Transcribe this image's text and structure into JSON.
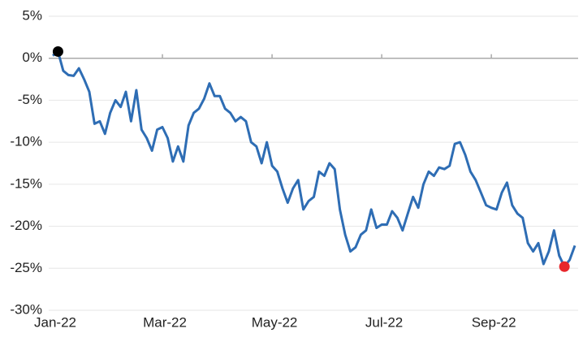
{
  "chart_data": {
    "type": "line",
    "categories": [
      "Jan-22",
      null,
      null,
      null,
      null,
      null,
      null,
      null,
      null,
      null,
      null,
      null,
      null,
      null,
      null,
      null,
      null,
      null,
      null,
      null,
      null,
      "Mar-22",
      null,
      null,
      null,
      null,
      null,
      null,
      null,
      null,
      null,
      null,
      null,
      null,
      null,
      null,
      null,
      null,
      null,
      null,
      null,
      null,
      "May-22",
      null,
      null,
      null,
      null,
      null,
      null,
      null,
      null,
      null,
      null,
      null,
      null,
      null,
      null,
      null,
      null,
      null,
      null,
      null,
      null,
      "Jul-22",
      null,
      null,
      null,
      null,
      null,
      null,
      null,
      null,
      null,
      null,
      null,
      null,
      null,
      null,
      null,
      null,
      null,
      null,
      null,
      null,
      "Sep-22",
      null,
      null,
      null,
      null,
      null,
      null,
      null,
      null,
      null,
      null,
      null,
      null,
      null,
      null,
      null,
      null
    ],
    "series": [
      {
        "color": "#2e6db4",
        "values": [
          0.3,
          0.8,
          -1.5,
          -2,
          -2.1,
          -1.2,
          -2.5,
          -4,
          -7.8,
          -7.5,
          -9,
          -6.5,
          -5,
          -5.8,
          -4,
          -7.5,
          -3.8,
          -8.5,
          -9.5,
          -11,
          -8.5,
          -8.2,
          -9.5,
          -12.3,
          -10.5,
          -12.3,
          -8,
          -6.5,
          -6,
          -4.8,
          -3,
          -4.5,
          -4.5,
          -6,
          -6.5,
          -7.5,
          -7,
          -7.5,
          -10,
          -10.5,
          -12.5,
          -10,
          -12.8,
          -13.5,
          -15.5,
          -17.2,
          -15.5,
          -14.5,
          -18,
          -17,
          -16.5,
          -13.5,
          -14,
          -12.5,
          -13.2,
          -18,
          -21,
          -23,
          -22.5,
          -21,
          -20.5,
          -18,
          -20.2,
          -19.8,
          -19.8,
          -18.2,
          -19,
          -20.5,
          -18.5,
          -16.5,
          -17.8,
          -15,
          -13.5,
          -14,
          -13,
          -13.2,
          -12.8,
          -10.2,
          -10,
          -11.5,
          -13.5,
          -14.5,
          -16,
          -17.5,
          -17.8,
          -18,
          -16,
          -14.8,
          -17.5,
          -18.5,
          -19,
          -22,
          -23,
          -22,
          -24.5,
          -23,
          -20.5,
          -23.5,
          -24.8,
          -24,
          -22.3
        ]
      }
    ],
    "highlight_points": [
      {
        "index": 1,
        "color": "#000000"
      },
      {
        "index": 98,
        "color": "#e8262b"
      }
    ],
    "ylim": [
      -30,
      5
    ],
    "yticks": [
      {
        "value": -30,
        "label": "-30%"
      },
      {
        "value": -25,
        "label": "-25%"
      },
      {
        "value": -20,
        "label": "-20%"
      },
      {
        "value": -15,
        "label": "-15%"
      },
      {
        "value": -10,
        "label": "-10%"
      },
      {
        "value": -5,
        "label": "-5%"
      },
      {
        "value": 0,
        "label": "0%"
      },
      {
        "value": 5,
        "label": "5%"
      }
    ],
    "grid": true
  }
}
